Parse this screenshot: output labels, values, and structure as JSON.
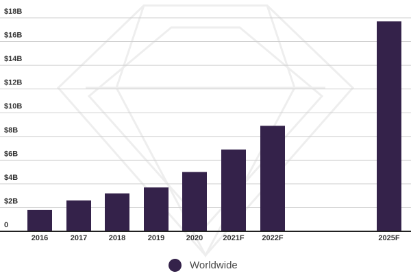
{
  "chart_data": {
    "type": "bar",
    "categories": [
      "2016",
      "2017",
      "2018",
      "2019",
      "2020",
      "2021F",
      "2022F",
      "2025F"
    ],
    "series": [
      {
        "name": "Worldwide",
        "values": [
          1.8,
          2.6,
          3.2,
          3.7,
          5.0,
          6.9,
          8.9,
          17.7
        ]
      }
    ],
    "y_ticks": [
      "0",
      "$2B",
      "$4B",
      "$6B",
      "$8B",
      "$10B",
      "$12B",
      "$14B",
      "$16B",
      "$18B"
    ],
    "ylim": [
      0,
      18
    ],
    "grid": true,
    "legend_position": "bottom-center",
    "colors": {
      "bar": "#34224a",
      "grid": "#cfcfcf",
      "axis": "#222222",
      "text": "#333333"
    }
  }
}
